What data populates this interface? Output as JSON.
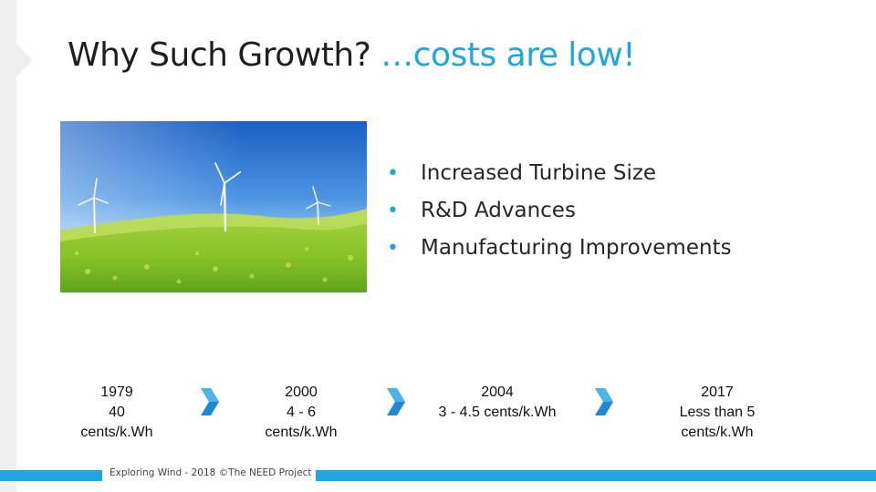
{
  "slide": {
    "title_main": "Why Such Growth? ",
    "title_accent": "…costs are low!",
    "accent_color": "#1ea6e0"
  },
  "photo": {
    "icon": "wind-turbines-field-image"
  },
  "bullets": [
    "Increased Turbine Size",
    "R&D Advances",
    "Manufacturing Improvements"
  ],
  "timeline": [
    {
      "year": "1979",
      "cost": "40",
      "unit": "cents/k.Wh"
    },
    {
      "year": "2000",
      "cost": "4 - 6",
      "unit": "cents/k.Wh"
    },
    {
      "year": "2004",
      "cost": "3 - 4.5 cents/k.Wh",
      "unit": ""
    },
    {
      "year": "2017",
      "cost": "Less than 5",
      "unit": "cents/k.Wh"
    }
  ],
  "footer": {
    "text": "Exploring Wind - 2018  ©The NEED Project"
  }
}
